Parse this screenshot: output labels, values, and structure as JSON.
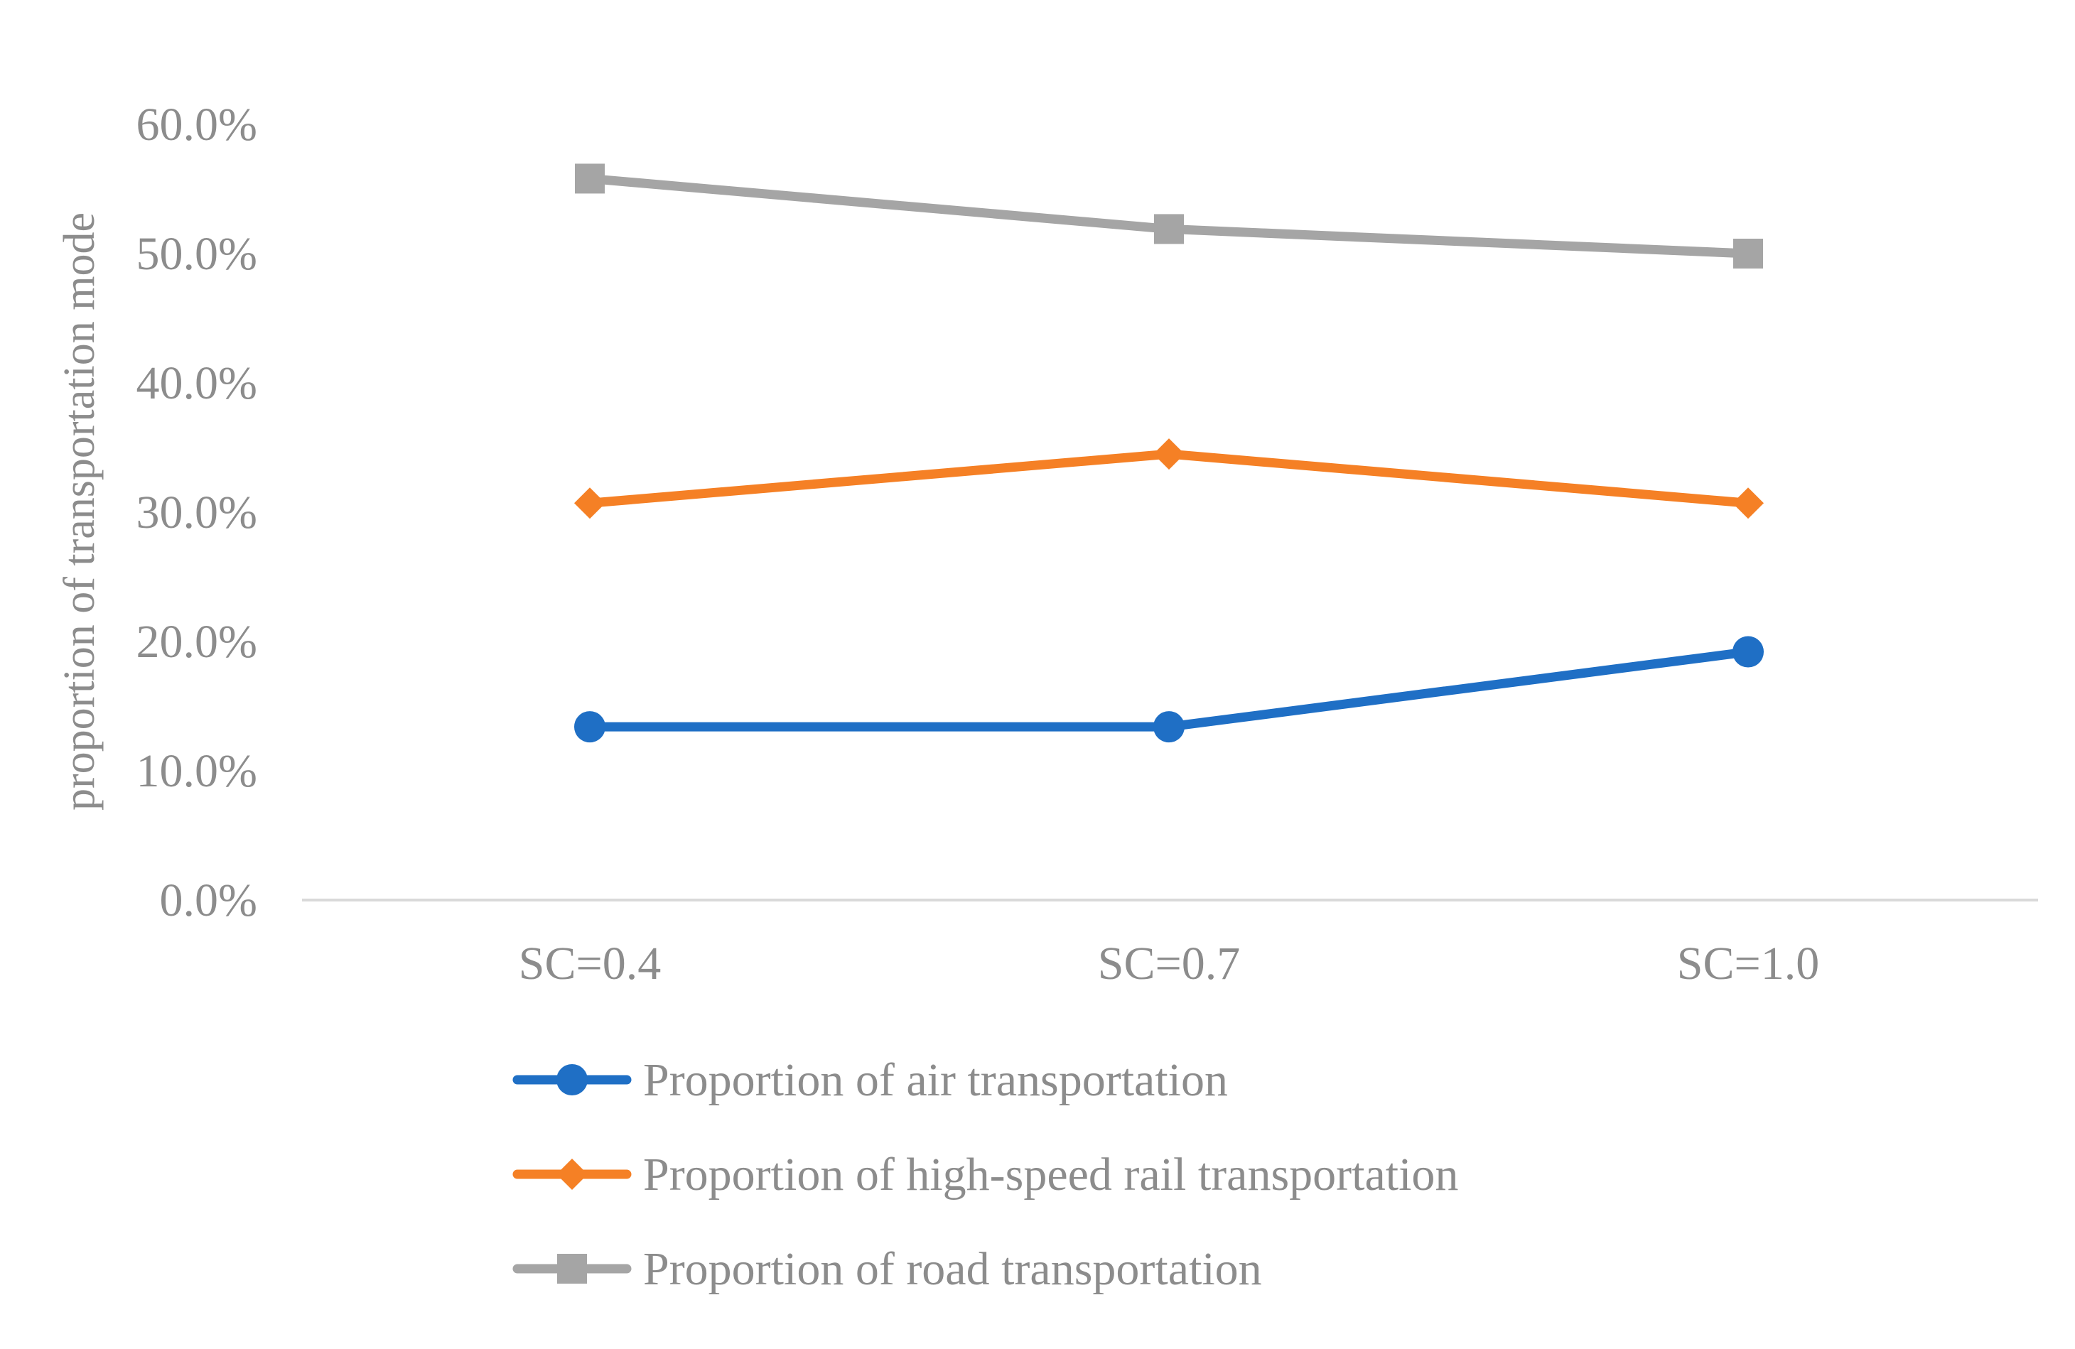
{
  "chart_data": {
    "type": "line",
    "title": "",
    "xlabel": "",
    "ylabel": "proportion of transportation mode",
    "categories": [
      "SC=0.4",
      "SC=0.7",
      "SC=1.0"
    ],
    "ylim": [
      0,
      0.6
    ],
    "yticks": [
      0,
      0.1,
      0.2,
      0.3,
      0.4,
      0.5,
      0.6
    ],
    "ytick_labels": [
      "0.0%",
      "10.0%",
      "20.0%",
      "30.0%",
      "40.0%",
      "50.0%",
      "60.0%"
    ],
    "grid": false,
    "legend_position": "bottom",
    "series": [
      {
        "name": "Proportion of air transportation",
        "values": [
          0.134,
          0.134,
          0.192
        ],
        "color": "#1f6fc5",
        "marker": "circle"
      },
      {
        "name": "Proportion of high-speed rail transportation",
        "values": [
          0.307,
          0.345,
          0.307
        ],
        "color": "#f58025",
        "marker": "diamond"
      },
      {
        "name": "Proportion of road transportation",
        "values": [
          0.558,
          0.519,
          0.5
        ],
        "color": "#a5a5a5",
        "marker": "square"
      }
    ]
  }
}
